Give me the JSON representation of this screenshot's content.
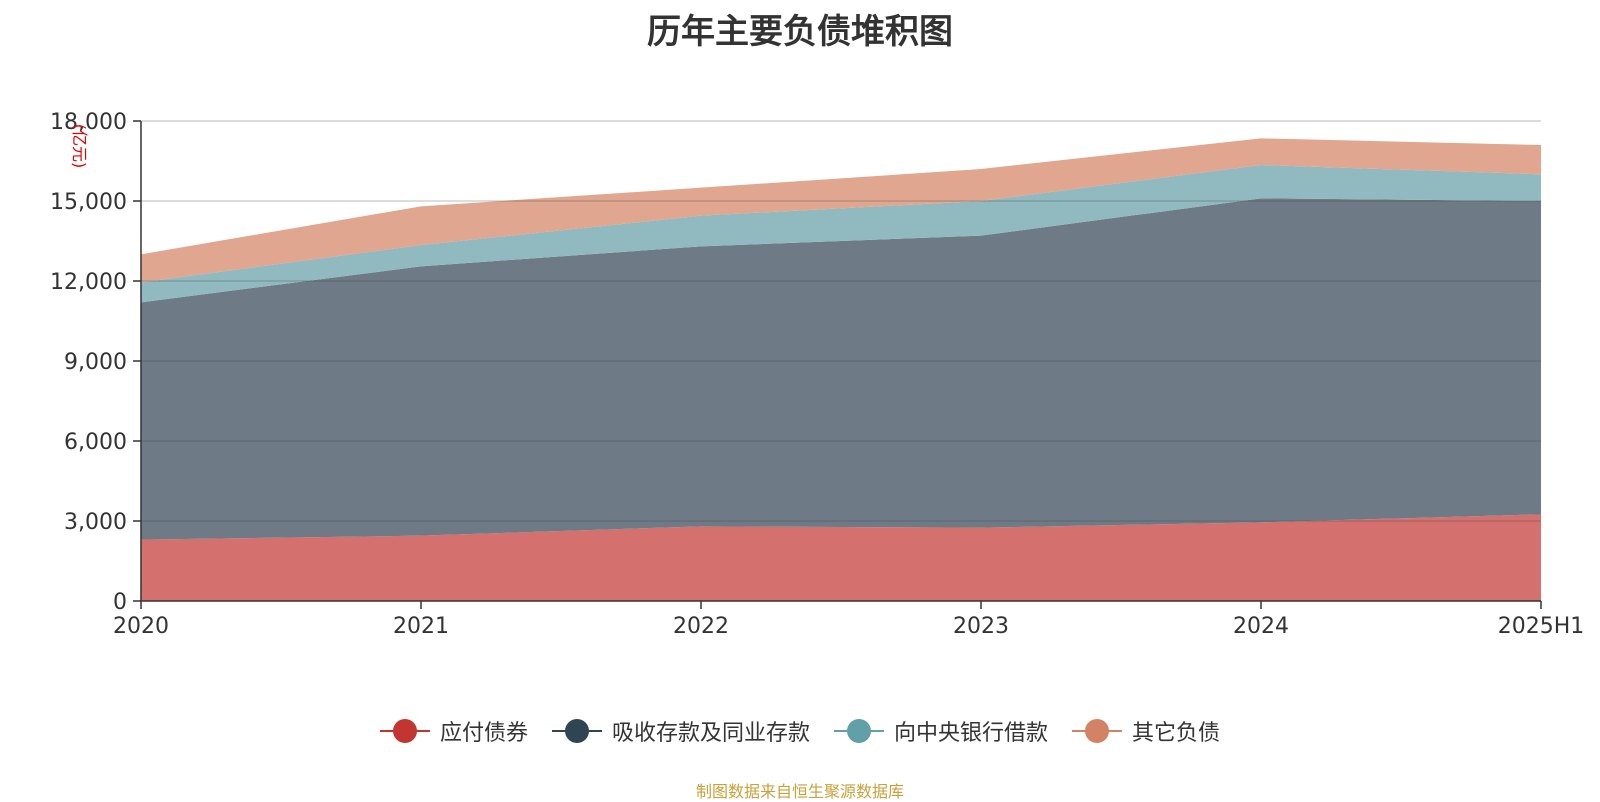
{
  "chart_data": {
    "type": "area",
    "stacked": true,
    "title": "历年主要负债堆积图",
    "ylabel": "(亿元)",
    "categories": [
      "2020",
      "2021",
      "2022",
      "2023",
      "2024",
      "2025H1"
    ],
    "ylim": [
      0,
      18000
    ],
    "yticks": [
      0,
      3000,
      6000,
      9000,
      12000,
      15000,
      18000
    ],
    "ytick_labels": [
      "0",
      "3,000",
      "6,000",
      "9,000",
      "12,000",
      "15,000",
      "18,000"
    ],
    "grid": true,
    "legend_position": "bottom",
    "series": [
      {
        "name": "应付债券",
        "color": "#c23531",
        "fill": "#d4706e",
        "values": [
          2300,
          2450,
          2800,
          2750,
          2950,
          3250
        ]
      },
      {
        "name": "吸收存款及同业存款",
        "color": "#2f4554",
        "fill": "#6e7b86",
        "values": [
          8900,
          10100,
          10500,
          10950,
          12150,
          11750
        ]
      },
      {
        "name": "向中央银行借款",
        "color": "#61a0a8",
        "fill": "#90babf",
        "values": [
          750,
          800,
          1150,
          1300,
          1250,
          1000
        ]
      },
      {
        "name": "其它负债",
        "color": "#d48265",
        "fill": "#e0a690",
        "values": [
          1050,
          1450,
          1050,
          1200,
          1000,
          1100
        ]
      }
    ]
  },
  "footer": {
    "source": "制图数据来自恒生聚源数据库"
  }
}
